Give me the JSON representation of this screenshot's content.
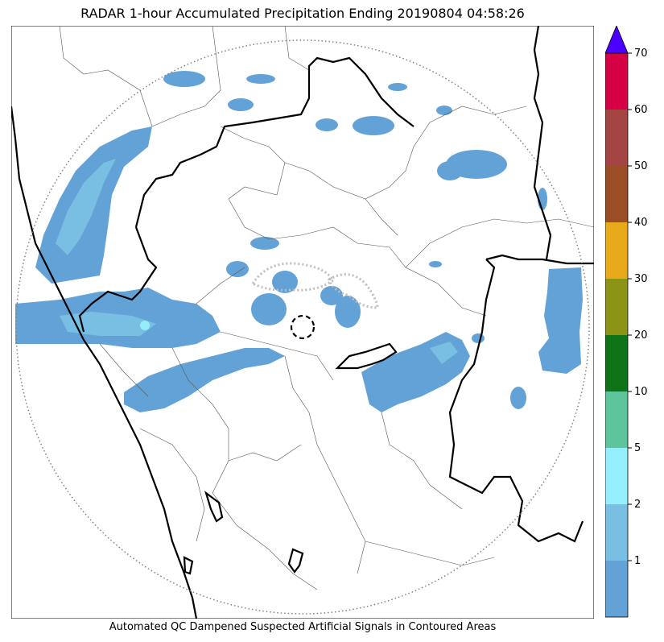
{
  "title": "RADAR 1-hour Accumulated Precipitation Ending 20190804 04:58:26",
  "caption": "Automated QC Dampened Suspected Artificial Signals in Contoured Areas",
  "colorbar": {
    "bins": [
      {
        "color": "#63a2d6"
      },
      {
        "color": "#78bfe3",
        "label": "1"
      },
      {
        "color": "#95eefc",
        "label": "2"
      },
      {
        "color": "#5ec49b",
        "label": "5"
      },
      {
        "color": "#0f7417",
        "label": "10"
      },
      {
        "color": "#8b9414",
        "label": "20"
      },
      {
        "color": "#e8aa1b",
        "label": "30"
      },
      {
        "color": "#9b4d26",
        "label": "40"
      },
      {
        "color": "#a44543",
        "label": "50"
      },
      {
        "color": "#d60044",
        "label": "60"
      }
    ],
    "top_label": "70",
    "extend_color": "#4c00ff"
  },
  "colors": {
    "light_rain": "#63a2d6",
    "moderate_rain": "#78bfe3",
    "heavy_rain": "#95eefc",
    "qc_contour": "#bdbdbd"
  }
}
